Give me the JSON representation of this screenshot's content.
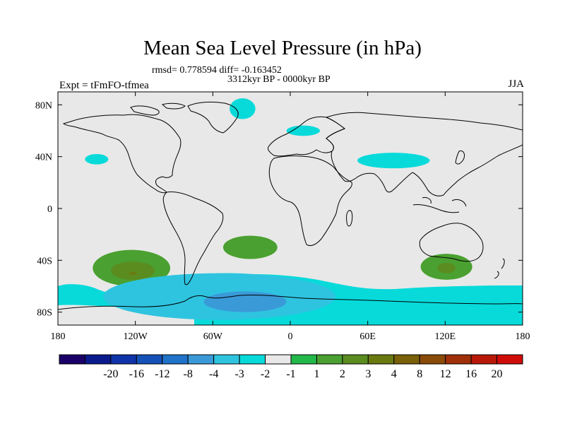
{
  "title": "Mean Sea Level Pressure (in hPa)",
  "stats": "rmsd= 0.778594 diff= -0.163452",
  "period": "3312kyr BP - 0000kyr BP",
  "experiment": "Expt = tFmFO-tfmea",
  "season": "JJA",
  "colors": {
    "background": "#e8e8e8",
    "coast": "#000000"
  },
  "map": {
    "lon_range": [
      -180,
      180
    ],
    "lat_range": [
      -90,
      90
    ],
    "lon_ticks": [
      {
        "value": -180,
        "label": "180"
      },
      {
        "value": -120,
        "label": "120W"
      },
      {
        "value": -60,
        "label": "60W"
      },
      {
        "value": 0,
        "label": "0"
      },
      {
        "value": 60,
        "label": "60E"
      },
      {
        "value": 120,
        "label": "120E"
      },
      {
        "value": 180,
        "label": "180"
      }
    ],
    "lat_ticks": [
      {
        "value": 80,
        "label": "80N"
      },
      {
        "value": 40,
        "label": "40N"
      },
      {
        "value": 0,
        "label": "0"
      },
      {
        "value": -40,
        "label": "40S"
      },
      {
        "value": -80,
        "label": "80S"
      }
    ]
  },
  "colorbar": {
    "colors": [
      "#1a0066",
      "#0a1a8c",
      "#0f33a8",
      "#1552b8",
      "#1f73c8",
      "#3a9ad8",
      "#2ec4e0",
      "#08dada",
      "#e8e8e8",
      "#22b84a",
      "#4aa030",
      "#5a8c20",
      "#6b7a10",
      "#7a6008",
      "#8a4a08",
      "#a03008",
      "#b81808",
      "#d00c08"
    ],
    "labels": [
      "-20",
      "-16",
      "-12",
      "-8",
      "-4",
      "-3",
      "-2",
      "-1",
      "1",
      "2",
      "3",
      "4",
      "8",
      "12",
      "16",
      "20"
    ]
  },
  "anomaly_regions": [
    {
      "name": "south-pacific-high",
      "level": "2",
      "lon": -123,
      "lat": -46,
      "dlon": 30,
      "dlat": 14
    },
    {
      "name": "south-pacific-high-core",
      "level": "3",
      "lon": -122,
      "lat": -48,
      "dlon": 17,
      "dlat": 7
    },
    {
      "name": "south-pacific-high-center",
      "level": "4",
      "lon": -122,
      "lat": -50,
      "dlon": 3,
      "dlat": 1
    },
    {
      "name": "south-atlantic-high",
      "level": "2",
      "lon": -31,
      "lat": -30,
      "dlon": 21,
      "dlat": 9
    },
    {
      "name": "south-indian-high",
      "level": "2",
      "lon": 121,
      "lat": -45,
      "dlon": 20,
      "dlat": 10
    },
    {
      "name": "south-indian-high-core",
      "level": "3",
      "lon": 121,
      "lat": -46,
      "dlon": 7,
      "dlat": 4
    },
    {
      "name": "southern-ocean-low",
      "level": "-2",
      "lon": -55,
      "lat": -68,
      "dlon": 90,
      "dlat": 18
    },
    {
      "name": "southern-ocean-low-core",
      "level": "-3",
      "lon": -35,
      "lat": -72,
      "dlon": 32,
      "dlat": 8
    },
    {
      "name": "north-atlantic-low",
      "level": "-1",
      "lon": 10,
      "lat": 60,
      "dlon": 13,
      "dlat": 4
    },
    {
      "name": "pacific-low",
      "level": "-1",
      "lon": -150,
      "lat": 38,
      "dlon": 9,
      "dlat": 4
    },
    {
      "name": "asia-low",
      "level": "-1",
      "lon": 80,
      "lat": 37,
      "dlon": 28,
      "dlat": 6
    },
    {
      "name": "greenland-low",
      "level": "-1",
      "lon": -37,
      "lat": 77,
      "dlon": 10,
      "dlat": 8
    }
  ]
}
